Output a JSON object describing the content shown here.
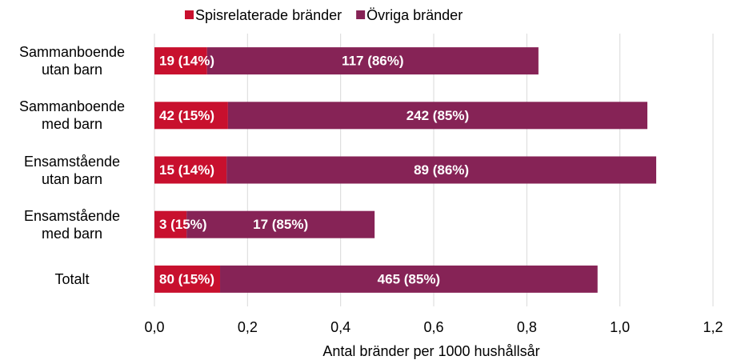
{
  "chart_data": {
    "type": "stacked-barh",
    "categories": [
      "Sammanboende\nutan barn",
      "Sammanboende\nmed barn",
      "Ensamstående\nutan barn",
      "Ensamstående\nmed barn",
      "Totalt"
    ],
    "series": [
      {
        "name": "Spisrelaterade bränder",
        "color": "#c8102e",
        "values": [
          0.113,
          0.158,
          0.155,
          0.069,
          0.141
        ],
        "labels": [
          "19 (14%)",
          "42 (15%)",
          "15 (14%)",
          "3 (15%)",
          "80 (15%)"
        ]
      },
      {
        "name": "Övriga bränder",
        "color": "#862356",
        "values": [
          0.712,
          0.901,
          0.923,
          0.404,
          0.811
        ],
        "labels": [
          "117 (86%)",
          "242 (85%)",
          "89 (86%)",
          "17 (85%)",
          "465 (85%)"
        ]
      }
    ],
    "xlim": [
      0,
      1.2
    ],
    "xticks": [
      {
        "value": 0,
        "label": "0,0"
      },
      {
        "value": 0.2,
        "label": "0,2"
      },
      {
        "value": 0.4,
        "label": "0,4"
      },
      {
        "value": 0.6,
        "label": "0,6"
      },
      {
        "value": 0.8,
        "label": "0,8"
      },
      {
        "value": 1.0,
        "label": "1,0"
      },
      {
        "value": 1.2,
        "label": "1,2"
      }
    ],
    "xlabel": "Antal bränder per 1000 hushållsår",
    "grid": true,
    "legend": "top"
  }
}
